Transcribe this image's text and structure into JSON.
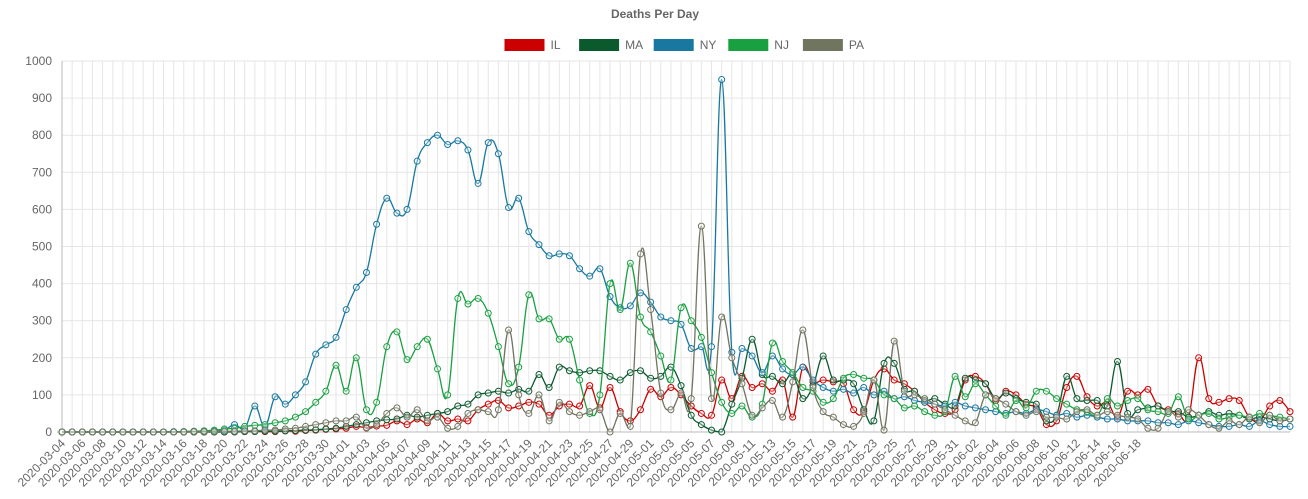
{
  "chart_data": {
    "type": "line",
    "title": "Deaths Per Day",
    "xlabel": "",
    "ylabel": "",
    "ylim": [
      0,
      1000
    ],
    "yticks": [
      0,
      100,
      200,
      300,
      400,
      500,
      600,
      700,
      800,
      900,
      1000
    ],
    "legend_position": "top-center",
    "grid": true,
    "start_date": "2020-03-04",
    "x_tick_labels": [
      "2020-03-04",
      "2020-03-06",
      "2020-03-08",
      "2020-03-10",
      "2020-03-12",
      "2020-03-14",
      "2020-03-16",
      "2020-03-18",
      "2020-03-20",
      "2020-03-22",
      "2020-03-24",
      "2020-03-26",
      "2020-03-28",
      "2020-03-30",
      "2020-04-01",
      "2020-04-03",
      "2020-04-05",
      "2020-04-07",
      "2020-04-09",
      "2020-04-11",
      "2020-04-13",
      "2020-04-15",
      "2020-04-17",
      "2020-04-19",
      "2020-04-21",
      "2020-04-23",
      "2020-04-25",
      "2020-04-27",
      "2020-04-29",
      "2020-05-01",
      "2020-05-03",
      "2020-05-05",
      "2020-05-07",
      "2020-05-09",
      "2020-05-11",
      "2020-05-13",
      "2020-05-15",
      "2020-05-17",
      "2020-05-19",
      "2020-05-21",
      "2020-05-23",
      "2020-05-25",
      "2020-05-27",
      "2020-05-29",
      "2020-05-31",
      "2020-06-02",
      "2020-06-04",
      "2020-06-06",
      "2020-06-08",
      "2020-06-10",
      "2020-06-12",
      "2020-06-14",
      "2020-06-16",
      "2020-06-18"
    ],
    "series": [
      {
        "name": "IL",
        "color": "#cc0000",
        "values": [
          0,
          0,
          0,
          0,
          0,
          0,
          0,
          0,
          0,
          0,
          0,
          0,
          0,
          0,
          0,
          0,
          0,
          1,
          1,
          2,
          1,
          1,
          3,
          2,
          4,
          5,
          7,
          8,
          10,
          15,
          12,
          16,
          18,
          30,
          20,
          35,
          25,
          50,
          30,
          35,
          30,
          60,
          75,
          85,
          65,
          70,
          80,
          75,
          45,
          70,
          75,
          70,
          125,
          65,
          120,
          55,
          30,
          60,
          115,
          95,
          120,
          100,
          70,
          50,
          45,
          140,
          90,
          150,
          120,
          130,
          110,
          140,
          40,
          175,
          135,
          140,
          135,
          130,
          60,
          55,
          140,
          170,
          140,
          130,
          110,
          80,
          60,
          50,
          60,
          140,
          150,
          130,
          85,
          110,
          100,
          75,
          65,
          20,
          30,
          120,
          150,
          95,
          70,
          80,
          40,
          110,
          100,
          115,
          70,
          60,
          50,
          40,
          200,
          90,
          80,
          90,
          85,
          40,
          30,
          70,
          85,
          55
        ]
      },
      {
        "name": "MA",
        "color": "#0b5a2e",
        "values": [
          0,
          0,
          0,
          0,
          0,
          0,
          0,
          0,
          0,
          0,
          0,
          0,
          0,
          0,
          0,
          0,
          0,
          0,
          1,
          1,
          2,
          2,
          3,
          4,
          5,
          6,
          8,
          10,
          15,
          20,
          25,
          30,
          33,
          35,
          45,
          40,
          45,
          50,
          55,
          70,
          75,
          100,
          105,
          110,
          105,
          115,
          110,
          155,
          120,
          175,
          165,
          160,
          165,
          165,
          150,
          140,
          160,
          165,
          145,
          150,
          175,
          125,
          45,
          20,
          5,
          0,
          75,
          145,
          250,
          155,
          150,
          130,
          155,
          90,
          125,
          205,
          140,
          140,
          130,
          60,
          30,
          185,
          185,
          115,
          110,
          85,
          90,
          75,
          70,
          145,
          140,
          130,
          90,
          105,
          90,
          80,
          75,
          30,
          45,
          150,
          90,
          85,
          85,
          70,
          190,
          50,
          60,
          65,
          70,
          55,
          55,
          40,
          45,
          55,
          45,
          50,
          45,
          35,
          40,
          35,
          30,
          35
        ]
      },
      {
        "name": "NY",
        "color": "#1878a0",
        "values": [
          0,
          0,
          0,
          0,
          0,
          0,
          0,
          0,
          0,
          0,
          0,
          1,
          1,
          2,
          3,
          3,
          5,
          20,
          10,
          70,
          15,
          95,
          75,
          100,
          135,
          210,
          235,
          255,
          330,
          390,
          430,
          560,
          630,
          590,
          600,
          730,
          780,
          800,
          775,
          785,
          760,
          670,
          780,
          750,
          605,
          630,
          540,
          505,
          475,
          480,
          475,
          440,
          420,
          440,
          365,
          335,
          340,
          375,
          350,
          310,
          300,
          290,
          225,
          230,
          230,
          950,
          215,
          225,
          205,
          160,
          205,
          170,
          155,
          175,
          140,
          120,
          110,
          115,
          105,
          120,
          100,
          110,
          90,
          95,
          85,
          80,
          75,
          70,
          80,
          70,
          65,
          60,
          55,
          50,
          55,
          50,
          60,
          55,
          45,
          50,
          40,
          45,
          40,
          35,
          35,
          30,
          30,
          30,
          25,
          25,
          20,
          30,
          25,
          20,
          15,
          15,
          20,
          15,
          30,
          20,
          15,
          15
        ]
      },
      {
        "name": "NJ",
        "color": "#19a040",
        "values": [
          0,
          0,
          0,
          0,
          0,
          0,
          0,
          0,
          0,
          0,
          0,
          0,
          1,
          2,
          3,
          5,
          8,
          10,
          15,
          18,
          20,
          25,
          30,
          40,
          55,
          80,
          110,
          180,
          110,
          200,
          60,
          80,
          230,
          270,
          195,
          230,
          250,
          170,
          100,
          360,
          345,
          360,
          320,
          230,
          130,
          175,
          370,
          305,
          305,
          250,
          250,
          140,
          50,
          100,
          400,
          330,
          455,
          310,
          270,
          205,
          140,
          335,
          300,
          255,
          160,
          80,
          50,
          70,
          40,
          75,
          240,
          190,
          160,
          120,
          110,
          80,
          90,
          145,
          155,
          145,
          140,
          100,
          90,
          65,
          70,
          55,
          45,
          55,
          150,
          95,
          130,
          100,
          70,
          45,
          85,
          65,
          110,
          110,
          90,
          75,
          60,
          55,
          45,
          90,
          70,
          85,
          90,
          60,
          55,
          50,
          95,
          35,
          45,
          50,
          35,
          40,
          45,
          40,
          50,
          45,
          40,
          35
        ]
      },
      {
        "name": "PA",
        "color": "#707560",
        "values": [
          0,
          0,
          0,
          0,
          0,
          0,
          0,
          0,
          0,
          0,
          0,
          0,
          0,
          1,
          1,
          1,
          2,
          2,
          3,
          3,
          5,
          5,
          8,
          10,
          15,
          20,
          25,
          30,
          30,
          40,
          10,
          20,
          50,
          65,
          40,
          60,
          30,
          40,
          10,
          15,
          50,
          60,
          55,
          60,
          275,
          100,
          50,
          100,
          30,
          80,
          55,
          45,
          55,
          60,
          0,
          50,
          15,
          480,
          330,
          105,
          60,
          105,
          90,
          555,
          90,
          310,
          200,
          130,
          45,
          65,
          85,
          40,
          135,
          275,
          120,
          55,
          40,
          20,
          15,
          50,
          140,
          5,
          245,
          110,
          100,
          90,
          75,
          60,
          45,
          30,
          25,
          100,
          90,
          75,
          55,
          45,
          55,
          40,
          40,
          35,
          55,
          60,
          45,
          55,
          45,
          40,
          35,
          10,
          10,
          55,
          40,
          60,
          45,
          20,
          10,
          30,
          20,
          40,
          25,
          45,
          30,
          35
        ]
      }
    ]
  }
}
